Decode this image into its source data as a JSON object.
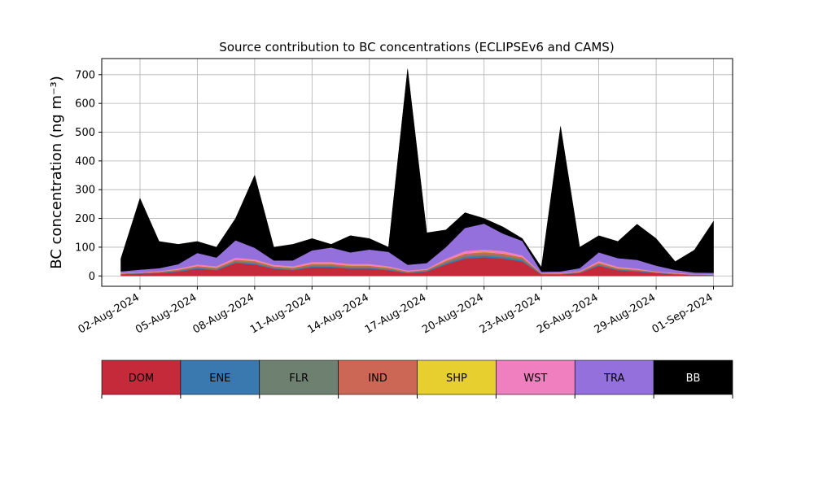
{
  "chart_data": {
    "type": "stacked_area",
    "title": "Source contribution to BC concentrations (ECLIPSEv6 and CAMS)",
    "ylabel": "BC concentration (ng m⁻³)",
    "x": [
      "2024-08-01",
      "2024-08-02",
      "2024-08-03",
      "2024-08-04",
      "2024-08-05",
      "2024-08-06",
      "2024-08-07",
      "2024-08-08",
      "2024-08-09",
      "2024-08-10",
      "2024-08-11",
      "2024-08-12",
      "2024-08-13",
      "2024-08-14",
      "2024-08-15",
      "2024-08-16",
      "2024-08-17",
      "2024-08-18",
      "2024-08-19",
      "2024-08-20",
      "2024-08-21",
      "2024-08-22",
      "2024-08-23",
      "2024-08-24",
      "2024-08-25",
      "2024-08-26",
      "2024-08-27",
      "2024-08-28",
      "2024-08-29",
      "2024-08-30",
      "2024-08-31",
      "2024-09-01"
    ],
    "series": [
      {
        "name": "DOM",
        "color": "#c52a3a",
        "values": [
          5,
          8,
          10,
          15,
          25,
          20,
          45,
          40,
          25,
          20,
          30,
          30,
          25,
          25,
          20,
          10,
          15,
          40,
          60,
          65,
          60,
          50,
          5,
          5,
          10,
          35,
          20,
          15,
          10,
          5,
          3,
          2
        ]
      },
      {
        "name": "ENE",
        "color": "#3a78b0",
        "values": [
          1,
          1,
          1,
          2,
          3,
          2,
          3,
          3,
          2,
          2,
          3,
          3,
          3,
          3,
          2,
          1,
          2,
          4,
          5,
          5,
          5,
          4,
          1,
          1,
          1,
          3,
          2,
          2,
          1,
          1,
          1,
          1
        ]
      },
      {
        "name": "FLR",
        "color": "#6e8070",
        "values": [
          1,
          1,
          1,
          2,
          3,
          3,
          4,
          4,
          3,
          3,
          4,
          4,
          3,
          3,
          3,
          2,
          2,
          4,
          6,
          6,
          6,
          5,
          1,
          1,
          1,
          3,
          2,
          2,
          1,
          1,
          1,
          1
        ]
      },
      {
        "name": "IND",
        "color": "#cc6655",
        "values": [
          2,
          2,
          3,
          3,
          4,
          4,
          5,
          5,
          4,
          4,
          5,
          5,
          5,
          5,
          4,
          3,
          3,
          5,
          7,
          7,
          7,
          6,
          2,
          2,
          3,
          5,
          3,
          3,
          2,
          2,
          1,
          1
        ]
      },
      {
        "name": "SHP",
        "color": "#e6cf2e",
        "values": [
          0,
          0,
          0,
          1,
          1,
          1,
          1,
          1,
          1,
          1,
          1,
          1,
          1,
          1,
          1,
          0,
          0,
          1,
          1,
          1,
          1,
          1,
          0,
          0,
          0,
          1,
          1,
          1,
          0,
          0,
          0,
          0
        ]
      },
      {
        "name": "WST",
        "color": "#f07fbf",
        "values": [
          2,
          2,
          2,
          3,
          4,
          4,
          6,
          5,
          4,
          4,
          6,
          6,
          5,
          5,
          4,
          3,
          3,
          6,
          8,
          8,
          8,
          6,
          1,
          2,
          2,
          5,
          4,
          3,
          2,
          2,
          1,
          1
        ]
      },
      {
        "name": "TRA",
        "color": "#9370db",
        "values": [
          5,
          8,
          10,
          15,
          40,
          30,
          60,
          40,
          15,
          20,
          40,
          50,
          40,
          50,
          50,
          20,
          20,
          40,
          80,
          90,
          60,
          50,
          5,
          5,
          10,
          30,
          30,
          30,
          20,
          10,
          5,
          5
        ]
      },
      {
        "name": "BB",
        "color": "#000000",
        "values": [
          44,
          248,
          93,
          69,
          40,
          36,
          76,
          252,
          46,
          56,
          41,
          11,
          58,
          38,
          16,
          681,
          105,
          60,
          53,
          18,
          23,
          8,
          15,
          504,
          73,
          58,
          58,
          124,
          94,
          29,
          78,
          179
        ]
      }
    ],
    "xlim": [
      "2024-07-31",
      "2024-09-02"
    ],
    "xticks": [
      {
        "value": "2024-08-02",
        "label": "02-Aug-2024"
      },
      {
        "value": "2024-08-05",
        "label": "05-Aug-2024"
      },
      {
        "value": "2024-08-08",
        "label": "08-Aug-2024"
      },
      {
        "value": "2024-08-11",
        "label": "11-Aug-2024"
      },
      {
        "value": "2024-08-14",
        "label": "14-Aug-2024"
      },
      {
        "value": "2024-08-17",
        "label": "17-Aug-2024"
      },
      {
        "value": "2024-08-20",
        "label": "20-Aug-2024"
      },
      {
        "value": "2024-08-23",
        "label": "23-Aug-2024"
      },
      {
        "value": "2024-08-26",
        "label": "26-Aug-2024"
      },
      {
        "value": "2024-08-29",
        "label": "29-Aug-2024"
      },
      {
        "value": "2024-09-01",
        "label": "01-Sep-2024"
      }
    ],
    "ylim": [
      -36,
      756
    ],
    "yticks": [
      0,
      100,
      200,
      300,
      400,
      500,
      600,
      700
    ],
    "grid": true
  }
}
